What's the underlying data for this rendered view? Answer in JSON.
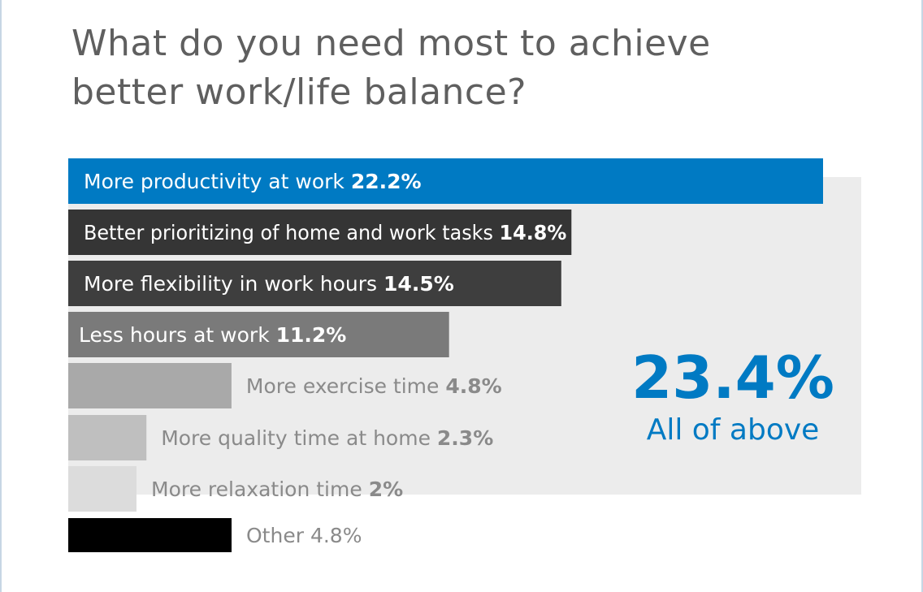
{
  "chart_data": {
    "type": "bar",
    "orientation": "horizontal",
    "title": "What do you need most to achieve better work/life balance?",
    "unit": "%",
    "categories": [
      "More productivity at work",
      "Better prioritizing of home and work tasks",
      "More flexibility in work hours",
      "Less hours at work",
      "More exercise time",
      "More quality time at home",
      "More relaxation time",
      "Other"
    ],
    "values": [
      22.2,
      14.8,
      14.5,
      11.2,
      4.8,
      2.3,
      2.0,
      4.8
    ],
    "value_labels": [
      "22.2%",
      "14.8%",
      "14.5%",
      "11.2%",
      "4.8%",
      "2.3%",
      "2%",
      "4.8%"
    ],
    "bar_colors": [
      "#007ac3",
      "#353535",
      "#3e3e3e",
      "#7a7a7a",
      "#a9a9a9",
      "#bfbfbf",
      "#dcdcdc",
      "#000000"
    ],
    "label_colors": [
      "#ffffff",
      "#ffffff",
      "#ffffff",
      "#ffffff",
      "#8a8a8a",
      "#8a8a8a",
      "#8a8a8a",
      "#8a8a8a"
    ],
    "callout": {
      "value": 23.4,
      "value_label": "23.4%",
      "label": "All of above",
      "color": "#007ac3",
      "panel_color": "#ececec"
    }
  }
}
